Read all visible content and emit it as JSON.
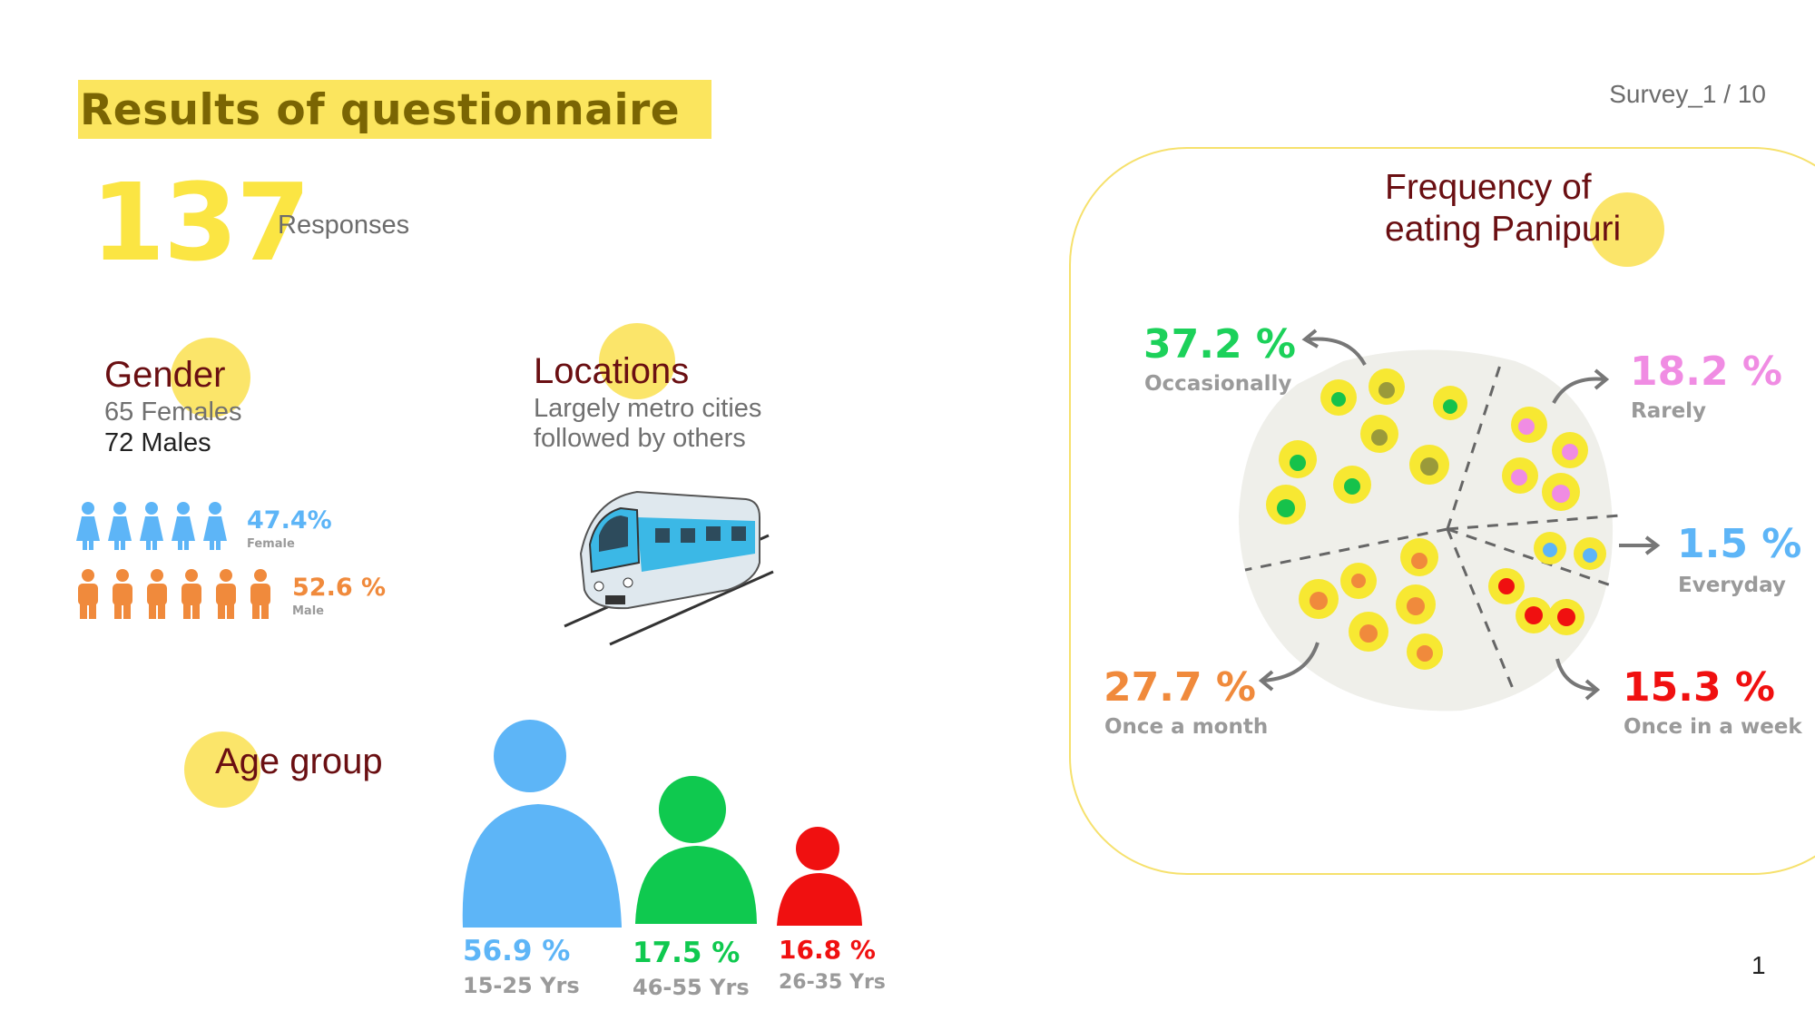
{
  "slide": {
    "title": "Results of questionnaire",
    "survey_tag": "Survey_1 / 10",
    "page_number": "1"
  },
  "responses": {
    "count": "137",
    "label": "Responses"
  },
  "gender": {
    "heading": "Gender",
    "females_line": "65 Females",
    "males_line": "72 Males",
    "female_pct": "47.4%",
    "female_label": "Female",
    "female_fraction": 0.474,
    "male_pct": "52.6 %",
    "male_label": "Male",
    "male_fraction": 0.526
  },
  "locations": {
    "heading": "Locations",
    "line1": "Largely metro cities",
    "line2": "followed by others"
  },
  "age_group": {
    "heading": "Age group",
    "groups": [
      {
        "pct": "56.9 %",
        "range": "15-25 Yrs",
        "color": "#5db5f7"
      },
      {
        "pct": "17.5 %",
        "range": "46-55 Yrs",
        "color": "#0fc94f"
      },
      {
        "pct": "16.8 %",
        "range": "26-35 Yrs",
        "color": "#f01010"
      }
    ]
  },
  "frequency": {
    "heading_line1": "Frequency of",
    "heading_line2": "eating Panipuri",
    "items": [
      {
        "pct": "37.2 %",
        "label": "Occasionally",
        "color": "#1cd15a"
      },
      {
        "pct": "18.2 %",
        "label": "Rarely",
        "color": "#f08ce3"
      },
      {
        "pct": "1.5 %",
        "label": "Everyday",
        "color": "#5db5f7"
      },
      {
        "pct": "27.7 %",
        "label": "Once a month",
        "color": "#f08a3c"
      },
      {
        "pct": "15.3 %",
        "label": "Once in a week",
        "color": "#f01010"
      }
    ]
  },
  "colors": {
    "accent_yellow": "#fbe55e",
    "heading_maroon": "#6a0f12",
    "female_blue": "#5db5f7",
    "male_orange": "#f08a3c"
  },
  "icons": {
    "female": "female-person-icon",
    "male": "male-person-icon",
    "train": "metro-train-icon",
    "plate": "panipuri-plate-icon",
    "arrow": "curved-arrow-icon"
  }
}
